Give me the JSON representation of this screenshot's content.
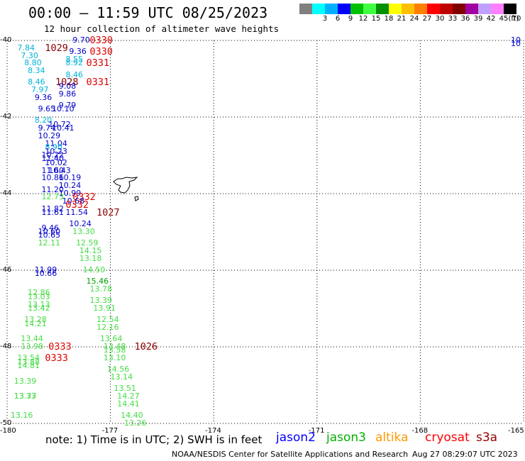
{
  "title": "00:00 – 11:59 UTC 08/25/2023",
  "subtitle": "12 hour collection of altimeter wave heights",
  "legend": {
    "unit": "(ft)",
    "swatches": [
      {
        "color": "#808080",
        "label": ""
      },
      {
        "color": "#00ffff",
        "label": "3"
      },
      {
        "color": "#00b0ff",
        "label": "6"
      },
      {
        "color": "#0000ff",
        "label": "9"
      },
      {
        "color": "#00c000",
        "label": "12"
      },
      {
        "color": "#40ff40",
        "label": "15"
      },
      {
        "color": "#009000",
        "label": "18"
      },
      {
        "color": "#ffff00",
        "label": "21"
      },
      {
        "color": "#ffc000",
        "label": "24"
      },
      {
        "color": "#ff8000",
        "label": "27"
      },
      {
        "color": "#ff0000",
        "label": "30"
      },
      {
        "color": "#c00000",
        "label": "33"
      },
      {
        "color": "#800000",
        "label": "36"
      },
      {
        "color": "#a000a0",
        "label": "39"
      },
      {
        "color": "#c0a0ff",
        "label": "42"
      },
      {
        "color": "#ff80ff",
        "label": "45"
      },
      {
        "color": "#000000",
        "label": "70"
      }
    ]
  },
  "axes": {
    "lat_labels": [
      "-40",
      "-42",
      "-44",
      "-46",
      "-48",
      "-50"
    ],
    "lon_labels": [
      "-180",
      "-177",
      "-174",
      "-171",
      "-168",
      "-165"
    ],
    "lon_range": [
      -180,
      -165
    ],
    "lat_range": [
      -50,
      -40
    ]
  },
  "colors": {
    "cyan": "#00b4d8",
    "blue": "#0000cc",
    "green": "#44dd44",
    "red": "#dd0000",
    "darkred": "#880000",
    "grid": "#000000"
  },
  "observations": [
    {
      "t": "9.70",
      "c": "blue",
      "lon": -178.1,
      "lat": -40.0
    },
    {
      "t": "0330",
      "c": "red",
      "lon": -177.6,
      "lat": -40.0,
      "big": true
    },
    {
      "t": "7.84",
      "c": "cyan",
      "lon": -179.7,
      "lat": -40.2
    },
    {
      "t": "1029",
      "c": "darkred",
      "lon": -178.9,
      "lat": -40.2,
      "big": true
    },
    {
      "t": "9.36",
      "c": "blue",
      "lon": -178.2,
      "lat": -40.3
    },
    {
      "t": "0330",
      "c": "red",
      "lon": -177.6,
      "lat": -40.3,
      "big": true
    },
    {
      "t": "7.30",
      "c": "cyan",
      "lon": -179.6,
      "lat": -40.4
    },
    {
      "t": "8.55",
      "c": "cyan",
      "lon": -178.3,
      "lat": -40.5
    },
    {
      "t": "8.80",
      "c": "cyan",
      "lon": -179.5,
      "lat": -40.6
    },
    {
      "t": "8.92",
      "c": "cyan",
      "lon": -178.3,
      "lat": -40.6
    },
    {
      "t": "0331",
      "c": "red",
      "lon": -177.7,
      "lat": -40.6,
      "big": true
    },
    {
      "t": "8.34",
      "c": "cyan",
      "lon": -179.4,
      "lat": -40.8
    },
    {
      "t": "8.46",
      "c": "cyan",
      "lon": -178.3,
      "lat": -40.9
    },
    {
      "t": "8.46",
      "c": "cyan",
      "lon": -179.4,
      "lat": -41.1
    },
    {
      "t": "1028",
      "c": "darkred",
      "lon": -178.6,
      "lat": -41.1,
      "big": true
    },
    {
      "t": "0331",
      "c": "red",
      "lon": -177.7,
      "lat": -41.1,
      "big": true
    },
    {
      "t": "9.08",
      "c": "blue",
      "lon": -178.5,
      "lat": -41.2
    },
    {
      "t": "7.97",
      "c": "cyan",
      "lon": -179.3,
      "lat": -41.3
    },
    {
      "t": "9.86",
      "c": "blue",
      "lon": -178.5,
      "lat": -41.4
    },
    {
      "t": "9.36",
      "c": "blue",
      "lon": -179.2,
      "lat": -41.5
    },
    {
      "t": "9.79",
      "c": "blue",
      "lon": -178.5,
      "lat": -41.7
    },
    {
      "t": "9.65",
      "c": "blue",
      "lon": -179.1,
      "lat": -41.8
    },
    {
      "t": "10.10",
      "c": "blue",
      "lon": -178.7,
      "lat": -41.8
    },
    {
      "t": "8.20",
      "c": "cyan",
      "lon": -179.2,
      "lat": -42.1
    },
    {
      "t": "10.72",
      "c": "blue",
      "lon": -178.8,
      "lat": -42.2
    },
    {
      "t": "9.74",
      "c": "blue",
      "lon": -179.1,
      "lat": -42.3
    },
    {
      "t": "10.41",
      "c": "blue",
      "lon": -178.7,
      "lat": -42.3
    },
    {
      "t": "10.29",
      "c": "blue",
      "lon": -179.1,
      "lat": -42.5
    },
    {
      "t": "11.04",
      "c": "blue",
      "lon": -178.9,
      "lat": -42.7
    },
    {
      "t": "8.90",
      "c": "cyan",
      "lon": -178.9,
      "lat": -42.8
    },
    {
      "t": "10.23",
      "c": "blue",
      "lon": -178.9,
      "lat": -42.9
    },
    {
      "t": "10.22",
      "c": "blue",
      "lon": -179.0,
      "lat": -43.0
    },
    {
      "t": "11.40",
      "c": "blue",
      "lon": -179.0,
      "lat": -43.1
    },
    {
      "t": "10.02",
      "c": "blue",
      "lon": -178.9,
      "lat": -43.2
    },
    {
      "t": "11.60",
      "c": "blue",
      "lon": -179.0,
      "lat": -43.4
    },
    {
      "t": "10.43",
      "c": "blue",
      "lon": -178.8,
      "lat": -43.4
    },
    {
      "t": "10.86",
      "c": "blue",
      "lon": -179.0,
      "lat": -43.6
    },
    {
      "t": "10.19",
      "c": "blue",
      "lon": -178.5,
      "lat": -43.6
    },
    {
      "t": "10.24",
      "c": "blue",
      "lon": -178.5,
      "lat": -43.8
    },
    {
      "t": "11.20",
      "c": "blue",
      "lon": -179.0,
      "lat": -43.9
    },
    {
      "t": "10.99",
      "c": "blue",
      "lon": -178.5,
      "lat": -44.0
    },
    {
      "t": "12.73",
      "c": "green",
      "lon": -179.0,
      "lat": -44.1
    },
    {
      "t": "0332",
      "c": "red",
      "lon": -178.1,
      "lat": -44.1,
      "big": true
    },
    {
      "t": "10.68",
      "c": "blue",
      "lon": -178.4,
      "lat": -44.2
    },
    {
      "t": "0332",
      "c": "red",
      "lon": -178.3,
      "lat": -44.3,
      "big": true
    },
    {
      "t": "11.82",
      "c": "blue",
      "lon": -179.0,
      "lat": -44.4
    },
    {
      "t": "11.61",
      "c": "blue",
      "lon": -179.0,
      "lat": -44.5
    },
    {
      "t": "11.54",
      "c": "blue",
      "lon": -178.3,
      "lat": -44.5
    },
    {
      "t": "1027",
      "c": "darkred",
      "lon": -177.4,
      "lat": -44.5,
      "big": true
    },
    {
      "t": "10.24",
      "c": "blue",
      "lon": -178.2,
      "lat": -44.8
    },
    {
      "t": "9.46",
      "c": "blue",
      "lon": -179.0,
      "lat": -44.9
    },
    {
      "t": "10.60",
      "c": "blue",
      "lon": -179.1,
      "lat": -45.0
    },
    {
      "t": "13.30",
      "c": "green",
      "lon": -178.1,
      "lat": -45.0
    },
    {
      "t": "10.65",
      "c": "blue",
      "lon": -179.1,
      "lat": -45.1
    },
    {
      "t": "12.11",
      "c": "green",
      "lon": -179.1,
      "lat": -45.3
    },
    {
      "t": "12.59",
      "c": "green",
      "lon": -178.0,
      "lat": -45.3
    },
    {
      "t": "14.15",
      "c": "green",
      "lon": -177.9,
      "lat": -45.5
    },
    {
      "t": "13.18",
      "c": "green",
      "lon": -177.9,
      "lat": -45.7
    },
    {
      "t": "11.99",
      "c": "blue",
      "lon": -179.2,
      "lat": -46.0
    },
    {
      "t": "10.66",
      "c": "blue",
      "lon": -179.2,
      "lat": -46.1
    },
    {
      "t": "14.50",
      "c": "green",
      "lon": -177.8,
      "lat": -46.0
    },
    {
      "t": "15.46",
      "c": "darkgreen",
      "lon": -177.7,
      "lat": -46.3
    },
    {
      "t": "12.86",
      "c": "green",
      "lon": -179.4,
      "lat": -46.6
    },
    {
      "t": "13.78",
      "c": "green",
      "lon": -177.6,
      "lat": -46.5
    },
    {
      "t": "13.03",
      "c": "green",
      "lon": -179.4,
      "lat": -46.7
    },
    {
      "t": "13.39",
      "c": "green",
      "lon": -177.6,
      "lat": -46.8
    },
    {
      "t": "13.13",
      "c": "green",
      "lon": -179.4,
      "lat": -46.9
    },
    {
      "t": "13.42",
      "c": "green",
      "lon": -179.4,
      "lat": -47.0
    },
    {
      "t": "13.91",
      "c": "green",
      "lon": -177.5,
      "lat": -47.0
    },
    {
      "t": "13.28",
      "c": "green",
      "lon": -179.5,
      "lat": -47.3
    },
    {
      "t": "12.54",
      "c": "green",
      "lon": -177.4,
      "lat": -47.3
    },
    {
      "t": "14.21",
      "c": "green",
      "lon": -179.5,
      "lat": -47.4
    },
    {
      "t": "12.16",
      "c": "green",
      "lon": -177.4,
      "lat": -47.5
    },
    {
      "t": "13.64",
      "c": "green",
      "lon": -177.3,
      "lat": -47.8
    },
    {
      "t": "13.44",
      "c": "green",
      "lon": -179.6,
      "lat": -47.8
    },
    {
      "t": "13.98",
      "c": "green",
      "lon": -179.6,
      "lat": -48.0
    },
    {
      "t": "0333",
      "c": "red",
      "lon": -178.8,
      "lat": -48.0,
      "big": true
    },
    {
      "t": "13.48",
      "c": "green",
      "lon": -177.2,
      "lat": -48.0
    },
    {
      "t": "13.58",
      "c": "green",
      "lon": -177.2,
      "lat": -48.1
    },
    {
      "t": "1026",
      "c": "darkred",
      "lon": -176.3,
      "lat": -48.0,
      "big": true
    },
    {
      "t": "13.10",
      "c": "green",
      "lon": -177.2,
      "lat": -48.3
    },
    {
      "t": "13.54",
      "c": "green",
      "lon": -179.7,
      "lat": -48.3
    },
    {
      "t": "0333",
      "c": "red",
      "lon": -178.9,
      "lat": -48.3,
      "big": true
    },
    {
      "t": "13.88",
      "c": "green",
      "lon": -179.7,
      "lat": -48.4
    },
    {
      "t": "14.81",
      "c": "green",
      "lon": -179.7,
      "lat": -48.5
    },
    {
      "t": "14.56",
      "c": "green",
      "lon": -177.1,
      "lat": -48.6
    },
    {
      "t": "13.14",
      "c": "green",
      "lon": -177.0,
      "lat": -48.8
    },
    {
      "t": "13.39",
      "c": "green",
      "lon": -179.8,
      "lat": -48.9
    },
    {
      "t": "13.51",
      "c": "green",
      "lon": -176.9,
      "lat": -49.1
    },
    {
      "t": "13.37",
      "c": "green",
      "lon": -179.8,
      "lat": -49.3
    },
    {
      "t": "13.73",
      "c": "green",
      "lon": -179.8,
      "lat": -49.3
    },
    {
      "t": "14.27",
      "c": "green",
      "lon": -176.8,
      "lat": -49.3
    },
    {
      "t": "14.41",
      "c": "green",
      "lon": -176.8,
      "lat": -49.5
    },
    {
      "t": "13.16",
      "c": "green",
      "lon": -179.9,
      "lat": -49.8
    },
    {
      "t": "14.40",
      "c": "green",
      "lon": -176.7,
      "lat": -49.8
    },
    {
      "t": "13.26",
      "c": "green",
      "lon": -176.6,
      "lat": -50.0
    },
    {
      "t": "10",
      "c": "blue",
      "lon": -165.1,
      "lat": -40.0
    },
    {
      "t": "10",
      "c": "blue",
      "lon": -165.0,
      "lat": -40.1
    }
  ],
  "footer": {
    "note": "note: 1) Time is in UTC; 2) SWH is in feet",
    "satellites": [
      {
        "name": "jason2",
        "color": "#0000ff"
      },
      {
        "name": "jason3",
        "color": "#00b000"
      },
      {
        "name": "altika",
        "color": "#ff9900"
      },
      {
        "name": "cryosat",
        "color": "#ff0000"
      },
      {
        "name": "s3a",
        "color": "#990000"
      }
    ],
    "credit": "NOAA/NESDIS Center for Satellite Applications and Research",
    "timestamp": "Aug 27 08:29:07 UTC 2023"
  }
}
